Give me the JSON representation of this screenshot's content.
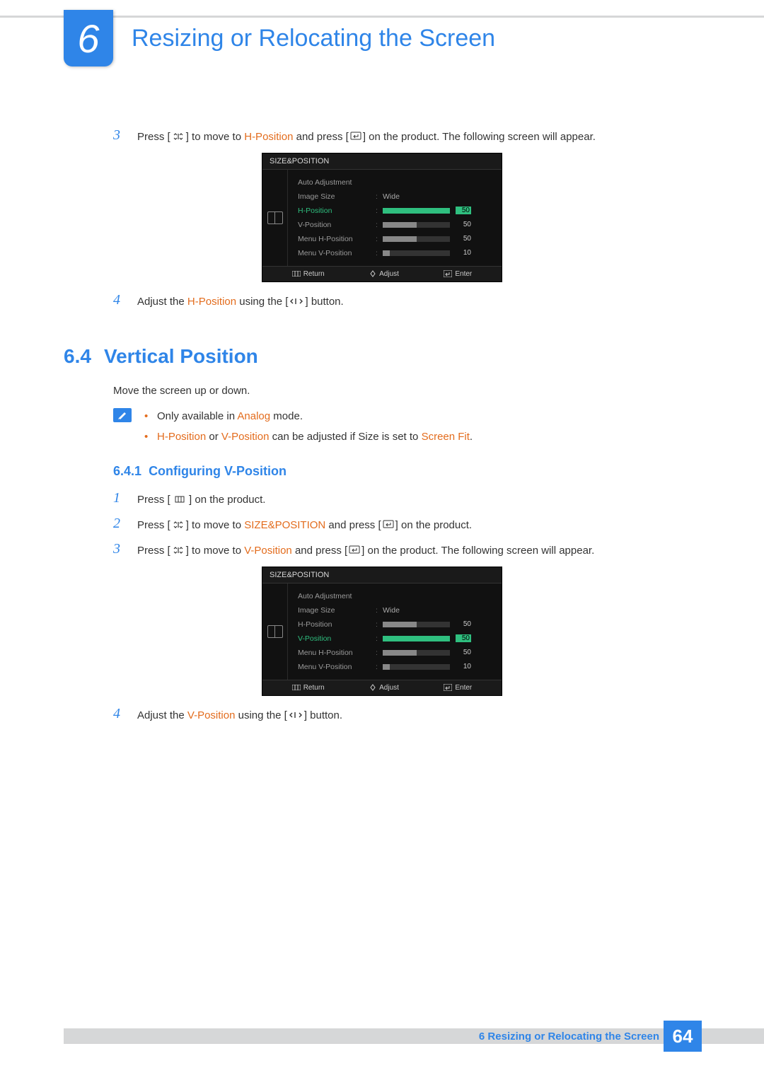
{
  "chapter": {
    "number": "6",
    "title": "Resizing or Relocating the Screen"
  },
  "page_number": "64",
  "footer_text": "6 Resizing or Relocating the Screen",
  "colors": {
    "accent_blue": "#2f85e8",
    "highlight_orange": "#e36c1d",
    "osd_active_green": "#2fbf7f",
    "osd_bg": "#111111",
    "osd_text": "#bfbfbf",
    "divider_gray": "#d6d7d8"
  },
  "top_steps": [
    {
      "num": "3",
      "pre": "Press [",
      "mid1": "] to move to ",
      "hl1": "H-Position",
      "mid2": " and press [",
      "post": "] on the product. The following screen will appear."
    },
    {
      "num": "4",
      "pre": "Adjust the ",
      "hl1": "H-Position",
      "mid1": " using the [",
      "post": "] button."
    }
  ],
  "osd1": {
    "title": "SIZE&POSITION",
    "active_index": 2,
    "rows": [
      {
        "label": "Auto Adjustment",
        "type": "blank"
      },
      {
        "label": "Image Size",
        "type": "text",
        "value": "Wide"
      },
      {
        "label": "H-Position",
        "type": "bar",
        "value": 50,
        "fill_pct": 100
      },
      {
        "label": "V-Position",
        "type": "bar",
        "value": 50,
        "fill_pct": 50
      },
      {
        "label": "Menu H-Position",
        "type": "bar",
        "value": 50,
        "fill_pct": 50
      },
      {
        "label": "Menu V-Position",
        "type": "bar",
        "value": 10,
        "fill_pct": 10
      }
    ],
    "footer": {
      "return": "Return",
      "adjust": "Adjust",
      "enter": "Enter"
    }
  },
  "section": {
    "number": "6.4",
    "title": "Vertical Position",
    "body": "Move the screen up or down.",
    "notes": {
      "n1a": "Only available in ",
      "n1b": "Analog",
      "n1c": " mode.",
      "n2a": "H-Position",
      "n2b": " or ",
      "n2c": "V-Position",
      "n2d": " can be adjusted if Size is set to ",
      "n2e": "Screen Fit",
      "n2f": "."
    }
  },
  "subsection": {
    "number": "6.4.1",
    "title": "Configuring V-Position"
  },
  "steps": {
    "s1": {
      "num": "1",
      "a": "Press [ ",
      "b": " ] on the product."
    },
    "s2": {
      "num": "2",
      "a": "Press [",
      "b": "] to move to ",
      "hl": "SIZE&POSITION",
      "c": " and press [",
      "d": "] on the product."
    },
    "s3": {
      "num": "3",
      "a": "Press [",
      "b": "] to move to ",
      "hl": "V-Position",
      "c": " and press [",
      "d": "] on the product. The following screen will appear."
    },
    "s4": {
      "num": "4",
      "a": "Adjust the ",
      "hl": "V-Position",
      "b": " using the [",
      "c": "] button."
    }
  },
  "osd2": {
    "title": "SIZE&POSITION",
    "active_index": 3,
    "rows": [
      {
        "label": "Auto Adjustment",
        "type": "blank"
      },
      {
        "label": "Image Size",
        "type": "text",
        "value": "Wide"
      },
      {
        "label": "H-Position",
        "type": "bar",
        "value": 50,
        "fill_pct": 50
      },
      {
        "label": "V-Position",
        "type": "bar",
        "value": 50,
        "fill_pct": 100
      },
      {
        "label": "Menu H-Position",
        "type": "bar",
        "value": 50,
        "fill_pct": 50
      },
      {
        "label": "Menu V-Position",
        "type": "bar",
        "value": 10,
        "fill_pct": 10
      }
    ],
    "footer": {
      "return": "Return",
      "adjust": "Adjust",
      "enter": "Enter"
    }
  }
}
